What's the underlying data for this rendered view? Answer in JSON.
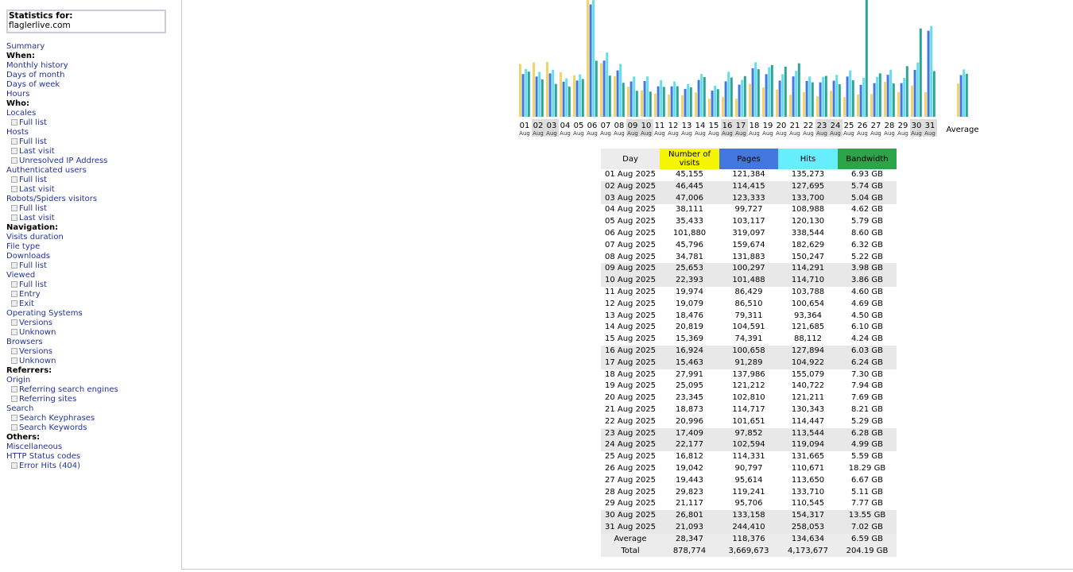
{
  "sidebar": {
    "stats_label": "Statistics for:",
    "site": "flaglerlive.com",
    "items": [
      {
        "type": "link",
        "label": "Summary"
      },
      {
        "type": "head",
        "label": "When:"
      },
      {
        "type": "link",
        "label": "Monthly history"
      },
      {
        "type": "link",
        "label": "Days of month"
      },
      {
        "type": "link",
        "label": "Days of week"
      },
      {
        "type": "link",
        "label": "Hours"
      },
      {
        "type": "head",
        "label": "Who:"
      },
      {
        "type": "link",
        "label": "Locales"
      },
      {
        "type": "sub",
        "label": "Full list"
      },
      {
        "type": "link",
        "label": "Hosts"
      },
      {
        "type": "sub",
        "label": "Full list"
      },
      {
        "type": "sub",
        "label": "Last visit"
      },
      {
        "type": "sub",
        "label": "Unresolved IP Address"
      },
      {
        "type": "link",
        "label": "Authenticated users"
      },
      {
        "type": "sub",
        "label": "Full list"
      },
      {
        "type": "sub",
        "label": "Last visit"
      },
      {
        "type": "link",
        "label": "Robots/Spiders visitors"
      },
      {
        "type": "sub",
        "label": "Full list"
      },
      {
        "type": "sub",
        "label": "Last visit"
      },
      {
        "type": "head",
        "label": "Navigation:"
      },
      {
        "type": "link",
        "label": "Visits duration"
      },
      {
        "type": "link",
        "label": "File type"
      },
      {
        "type": "link",
        "label": "Downloads"
      },
      {
        "type": "sub",
        "label": "Full list"
      },
      {
        "type": "link",
        "label": "Viewed"
      },
      {
        "type": "sub",
        "label": "Full list"
      },
      {
        "type": "sub",
        "label": "Entry"
      },
      {
        "type": "sub",
        "label": "Exit"
      },
      {
        "type": "link",
        "label": "Operating Systems"
      },
      {
        "type": "sub",
        "label": "Versions"
      },
      {
        "type": "sub",
        "label": "Unknown"
      },
      {
        "type": "link",
        "label": "Browsers"
      },
      {
        "type": "sub",
        "label": "Versions"
      },
      {
        "type": "sub",
        "label": "Unknown"
      },
      {
        "type": "head",
        "label": "Referrers:"
      },
      {
        "type": "link",
        "label": "Origin"
      },
      {
        "type": "sub",
        "label": "Referring search engines"
      },
      {
        "type": "sub",
        "label": "Referring sites"
      },
      {
        "type": "link",
        "label": "Search"
      },
      {
        "type": "sub",
        "label": "Search Keyphrases"
      },
      {
        "type": "sub",
        "label": "Search Keywords"
      },
      {
        "type": "head",
        "label": "Others:"
      },
      {
        "type": "link",
        "label": "Miscellaneous"
      },
      {
        "type": "link",
        "label": "HTTP Status codes"
      },
      {
        "type": "sub",
        "label": "Error Hits (404)"
      }
    ]
  },
  "colors": {
    "visits": "#f3d469",
    "pages": "#4477dd",
    "hits": "#66ddee",
    "bandwidth": "#2ea495",
    "visits_alt": "#d8c37d"
  },
  "chart_data": {
    "type": "bar",
    "categories": [
      "01",
      "02",
      "03",
      "04",
      "05",
      "06",
      "07",
      "08",
      "09",
      "10",
      "11",
      "12",
      "13",
      "14",
      "15",
      "16",
      "17",
      "18",
      "19",
      "20",
      "21",
      "22",
      "23",
      "24",
      "25",
      "26",
      "27",
      "28",
      "29",
      "30",
      "31"
    ],
    "sublabel": "Aug",
    "average_label": "Average",
    "weekend_days": [
      "02",
      "03",
      "09",
      "10",
      "16",
      "17",
      "23",
      "24",
      "30",
      "31"
    ],
    "series": [
      {
        "key": "visits",
        "values": [
          45155,
          46445,
          47006,
          38111,
          35433,
          101880,
          45796,
          34781,
          25653,
          22393,
          19974,
          19079,
          18476,
          20819,
          15369,
          16924,
          15463,
          27991,
          25095,
          23345,
          18873,
          20996,
          17409,
          22177,
          16812,
          19042,
          19443,
          29823,
          21117,
          26801,
          21093
        ],
        "average": 28347
      },
      {
        "key": "pages",
        "values": [
          121384,
          114415,
          123333,
          99727,
          103117,
          319097,
          159674,
          131883,
          100297,
          101488,
          86429,
          86510,
          79311,
          104591,
          74391,
          100658,
          91289,
          137986,
          121212,
          102810,
          114717,
          101651,
          97852,
          102594,
          114331,
          90797,
          95614,
          119241,
          95706,
          133158,
          244410
        ],
        "average": 118376
      },
      {
        "key": "hits",
        "values": [
          135273,
          127695,
          133700,
          108988,
          120130,
          338544,
          182629,
          150247,
          114291,
          114710,
          103788,
          100654,
          93364,
          121685,
          88112,
          127894,
          104922,
          155079,
          140722,
          121211,
          130343,
          114447,
          113544,
          119094,
          131665,
          110671,
          113650,
          133710,
          110545,
          154317,
          258053
        ],
        "average": 134634
      },
      {
        "key": "bandwidth",
        "values": [
          6.93,
          5.74,
          5.04,
          4.62,
          5.79,
          8.6,
          6.32,
          5.22,
          3.98,
          3.86,
          4.6,
          4.69,
          4.5,
          6.1,
          4.24,
          6.03,
          6.24,
          7.3,
          7.94,
          7.69,
          8.21,
          5.29,
          6.28,
          4.99,
          5.59,
          18.29,
          6.67,
          5.11,
          7.77,
          13.55,
          7.02
        ],
        "average": 6.59
      }
    ]
  },
  "table": {
    "headers": {
      "day": "Day",
      "visits": "Number of visits",
      "pages": "Pages",
      "hits": "Hits",
      "bandwidth": "Bandwidth"
    },
    "rows": [
      {
        "day": "01 Aug 2025",
        "visits": "45,155",
        "pages": "121,384",
        "hits": "135,273",
        "bandwidth": "6.93 GB",
        "weekend": false
      },
      {
        "day": "02 Aug 2025",
        "visits": "46,445",
        "pages": "114,415",
        "hits": "127,695",
        "bandwidth": "5.74 GB",
        "weekend": true
      },
      {
        "day": "03 Aug 2025",
        "visits": "47,006",
        "pages": "123,333",
        "hits": "133,700",
        "bandwidth": "5.04 GB",
        "weekend": true
      },
      {
        "day": "04 Aug 2025",
        "visits": "38,111",
        "pages": "99,727",
        "hits": "108,988",
        "bandwidth": "4.62 GB",
        "weekend": false
      },
      {
        "day": "05 Aug 2025",
        "visits": "35,433",
        "pages": "103,117",
        "hits": "120,130",
        "bandwidth": "5.79 GB",
        "weekend": false
      },
      {
        "day": "06 Aug 2025",
        "visits": "101,880",
        "pages": "319,097",
        "hits": "338,544",
        "bandwidth": "8.60 GB",
        "weekend": false
      },
      {
        "day": "07 Aug 2025",
        "visits": "45,796",
        "pages": "159,674",
        "hits": "182,629",
        "bandwidth": "6.32 GB",
        "weekend": false
      },
      {
        "day": "08 Aug 2025",
        "visits": "34,781",
        "pages": "131,883",
        "hits": "150,247",
        "bandwidth": "5.22 GB",
        "weekend": false
      },
      {
        "day": "09 Aug 2025",
        "visits": "25,653",
        "pages": "100,297",
        "hits": "114,291",
        "bandwidth": "3.98 GB",
        "weekend": true
      },
      {
        "day": "10 Aug 2025",
        "visits": "22,393",
        "pages": "101,488",
        "hits": "114,710",
        "bandwidth": "3.86 GB",
        "weekend": true
      },
      {
        "day": "11 Aug 2025",
        "visits": "19,974",
        "pages": "86,429",
        "hits": "103,788",
        "bandwidth": "4.60 GB",
        "weekend": false
      },
      {
        "day": "12 Aug 2025",
        "visits": "19,079",
        "pages": "86,510",
        "hits": "100,654",
        "bandwidth": "4.69 GB",
        "weekend": false
      },
      {
        "day": "13 Aug 2025",
        "visits": "18,476",
        "pages": "79,311",
        "hits": "93,364",
        "bandwidth": "4.50 GB",
        "weekend": false
      },
      {
        "day": "14 Aug 2025",
        "visits": "20,819",
        "pages": "104,591",
        "hits": "121,685",
        "bandwidth": "6.10 GB",
        "weekend": false
      },
      {
        "day": "15 Aug 2025",
        "visits": "15,369",
        "pages": "74,391",
        "hits": "88,112",
        "bandwidth": "4.24 GB",
        "weekend": false
      },
      {
        "day": "16 Aug 2025",
        "visits": "16,924",
        "pages": "100,658",
        "hits": "127,894",
        "bandwidth": "6.03 GB",
        "weekend": true
      },
      {
        "day": "17 Aug 2025",
        "visits": "15,463",
        "pages": "91,289",
        "hits": "104,922",
        "bandwidth": "6.24 GB",
        "weekend": true
      },
      {
        "day": "18 Aug 2025",
        "visits": "27,991",
        "pages": "137,986",
        "hits": "155,079",
        "bandwidth": "7.30 GB",
        "weekend": false
      },
      {
        "day": "19 Aug 2025",
        "visits": "25,095",
        "pages": "121,212",
        "hits": "140,722",
        "bandwidth": "7.94 GB",
        "weekend": false
      },
      {
        "day": "20 Aug 2025",
        "visits": "23,345",
        "pages": "102,810",
        "hits": "121,211",
        "bandwidth": "7.69 GB",
        "weekend": false
      },
      {
        "day": "21 Aug 2025",
        "visits": "18,873",
        "pages": "114,717",
        "hits": "130,343",
        "bandwidth": "8.21 GB",
        "weekend": false
      },
      {
        "day": "22 Aug 2025",
        "visits": "20,996",
        "pages": "101,651",
        "hits": "114,447",
        "bandwidth": "5.29 GB",
        "weekend": false
      },
      {
        "day": "23 Aug 2025",
        "visits": "17,409",
        "pages": "97,852",
        "hits": "113,544",
        "bandwidth": "6.28 GB",
        "weekend": true
      },
      {
        "day": "24 Aug 2025",
        "visits": "22,177",
        "pages": "102,594",
        "hits": "119,094",
        "bandwidth": "4.99 GB",
        "weekend": true
      },
      {
        "day": "25 Aug 2025",
        "visits": "16,812",
        "pages": "114,331",
        "hits": "131,665",
        "bandwidth": "5.59 GB",
        "weekend": false
      },
      {
        "day": "26 Aug 2025",
        "visits": "19,042",
        "pages": "90,797",
        "hits": "110,671",
        "bandwidth": "18.29 GB",
        "weekend": false
      },
      {
        "day": "27 Aug 2025",
        "visits": "19,443",
        "pages": "95,614",
        "hits": "113,650",
        "bandwidth": "6.67 GB",
        "weekend": false
      },
      {
        "day": "28 Aug 2025",
        "visits": "29,823",
        "pages": "119,241",
        "hits": "133,710",
        "bandwidth": "5.11 GB",
        "weekend": false
      },
      {
        "day": "29 Aug 2025",
        "visits": "21,117",
        "pages": "95,706",
        "hits": "110,545",
        "bandwidth": "7.77 GB",
        "weekend": false
      },
      {
        "day": "30 Aug 2025",
        "visits": "26,801",
        "pages": "133,158",
        "hits": "154,317",
        "bandwidth": "13.55 GB",
        "weekend": true
      },
      {
        "day": "31 Aug 2025",
        "visits": "21,093",
        "pages": "244,410",
        "hits": "258,053",
        "bandwidth": "7.02 GB",
        "weekend": true
      }
    ],
    "average": {
      "day": "Average",
      "visits": "28,347",
      "pages": "118,376",
      "hits": "134,634",
      "bandwidth": "6.59 GB"
    },
    "total": {
      "day": "Total",
      "visits": "878,774",
      "pages": "3,669,673",
      "hits": "4,173,677",
      "bandwidth": "204.19 GB"
    }
  }
}
